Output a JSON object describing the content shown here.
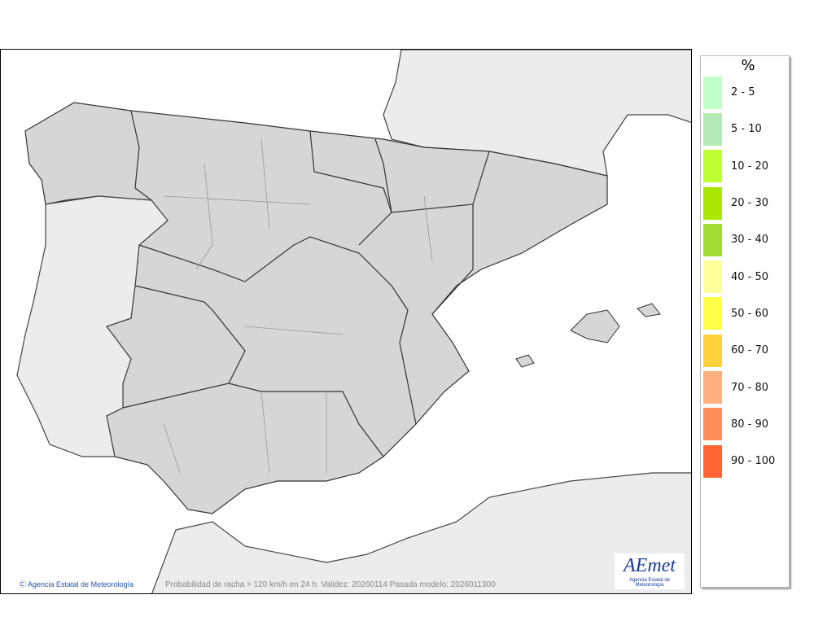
{
  "map": {
    "credit": "Agencia Estatal de Meteorología",
    "caption": "Probabilidad de racha > 120 km/h en 24 h. Validez: 20260114 Pasada modelo: 2026011300",
    "logo_text": "AEmet",
    "logo_subtitle": "Agencia Estatal de Meteorología",
    "colors": {
      "spain_land": "#d6d6d6",
      "other_land": "#ececec",
      "sea": "#ffffff"
    }
  },
  "legend": {
    "title": "%",
    "items": [
      {
        "label": "2 - 5",
        "color": "#c0ffc8"
      },
      {
        "label": "5 - 10",
        "color": "#b4ebb4"
      },
      {
        "label": "10 - 20",
        "color": "#beff32"
      },
      {
        "label": "20 - 30",
        "color": "#aae600"
      },
      {
        "label": "30 - 40",
        "color": "#a0dc32"
      },
      {
        "label": "40 - 50",
        "color": "#ffff9b"
      },
      {
        "label": "50 - 60",
        "color": "#ffff46"
      },
      {
        "label": "60 - 70",
        "color": "#ffd23c"
      },
      {
        "label": "70 - 80",
        "color": "#ffaf7d"
      },
      {
        "label": "80 - 90",
        "color": "#ff8c5a"
      },
      {
        "label": "90 - 100",
        "color": "#ff6432"
      }
    ]
  }
}
